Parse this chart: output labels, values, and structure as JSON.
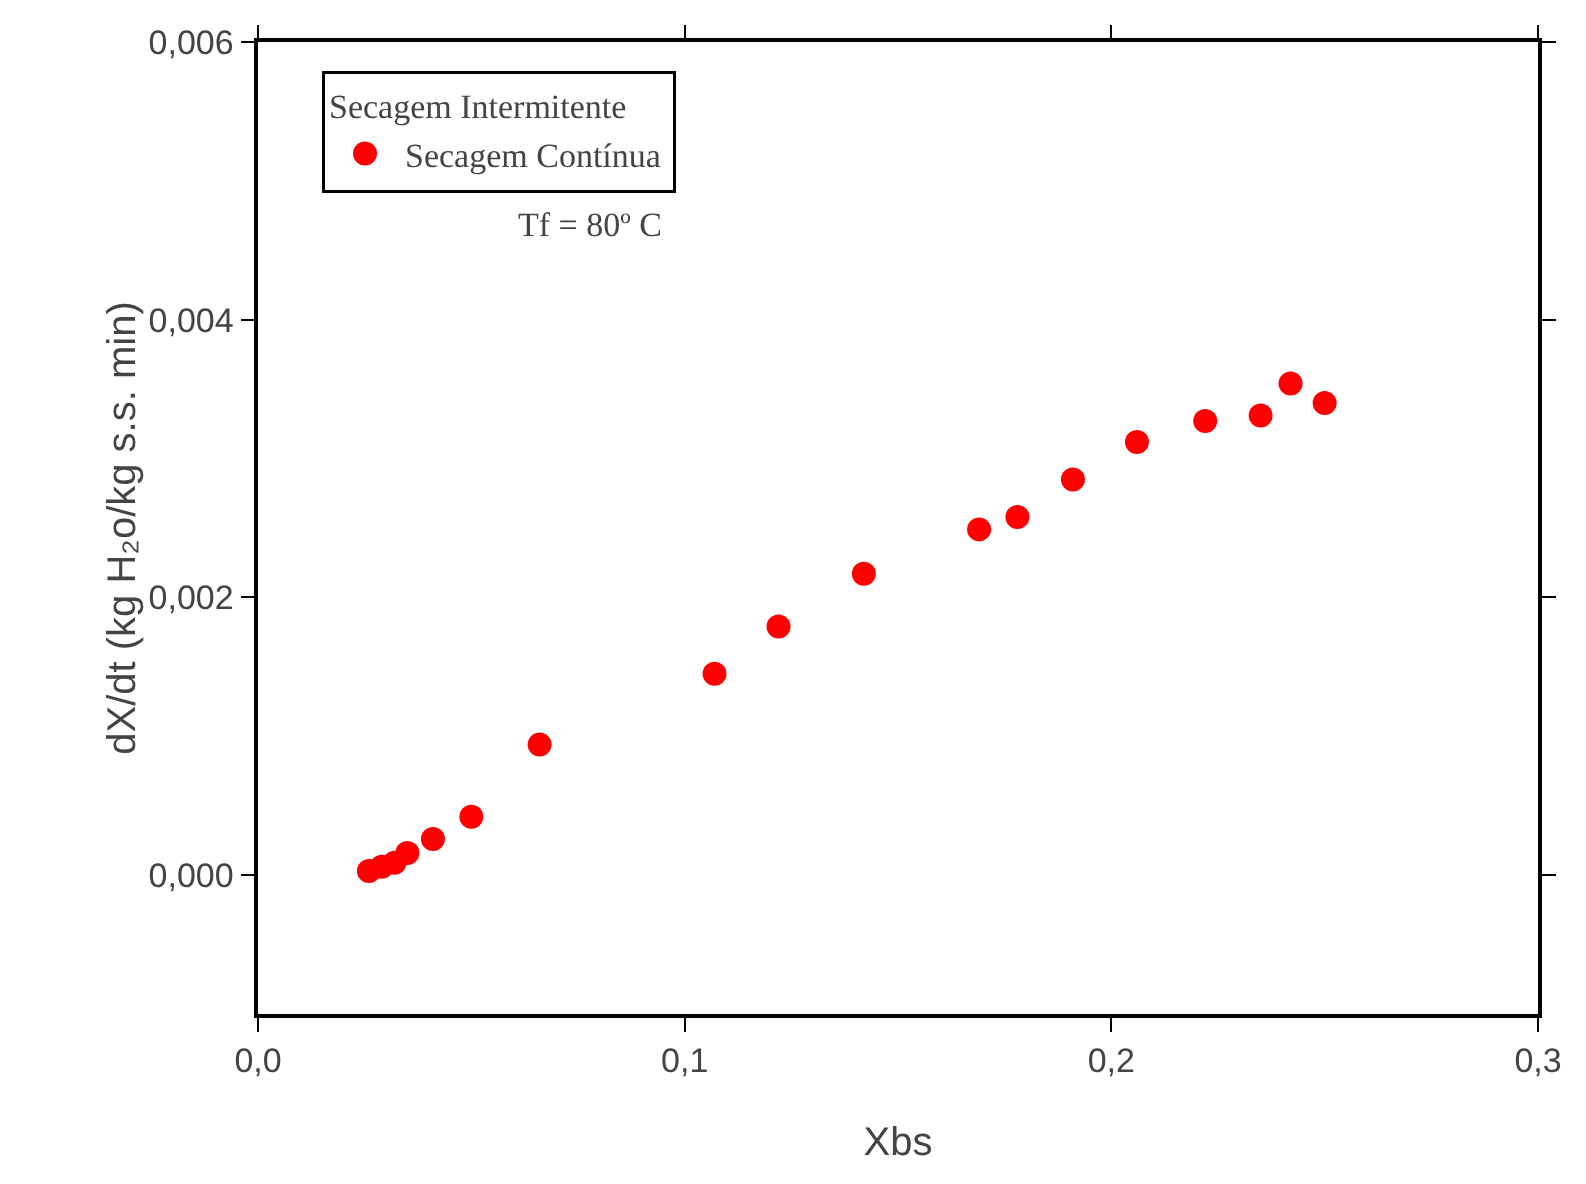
{
  "chart_data": {
    "type": "scatter",
    "xlabel": "Xbs",
    "ylabel": "dX/dt (kg H₂o/kg s.s. min)",
    "legend_title": "Secagem Intermitente",
    "annotations": [
      "Tf = 80º C"
    ],
    "x": [
      0.026,
      0.029,
      0.032,
      0.035,
      0.041,
      0.05,
      0.066,
      0.107,
      0.122,
      0.142,
      0.169,
      0.178,
      0.191,
      0.206,
      0.222,
      0.235,
      0.242,
      0.25
    ],
    "series": [
      {
        "name": "Secagem Contínua",
        "color": "#ff0000",
        "values": [
          3e-05,
          6e-05,
          9e-05,
          0.00016,
          0.00026,
          0.00042,
          0.00094,
          0.00145,
          0.00179,
          0.00217,
          0.00249,
          0.00258,
          0.00285,
          0.00312,
          0.00327,
          0.00331,
          0.00354,
          0.0034
        ]
      }
    ],
    "xlim": [
      0,
      0.3
    ],
    "xticks": [
      {
        "value": 0,
        "label": "0,0"
      },
      {
        "value": 0.1,
        "label": "0,1"
      },
      {
        "value": 0.2,
        "label": "0,2"
      },
      {
        "value": 0.3,
        "label": "0,3"
      }
    ],
    "ylim": [
      -0.001,
      0.006
    ],
    "yticks": [
      {
        "value": 0,
        "label": "0,000"
      },
      {
        "value": 0.002,
        "label": "0,002"
      },
      {
        "value": 0.004,
        "label": "0,004"
      },
      {
        "value": 0.006,
        "label": "0,006"
      }
    ],
    "grid": false,
    "legend": "top left",
    "marker": "circle"
  }
}
